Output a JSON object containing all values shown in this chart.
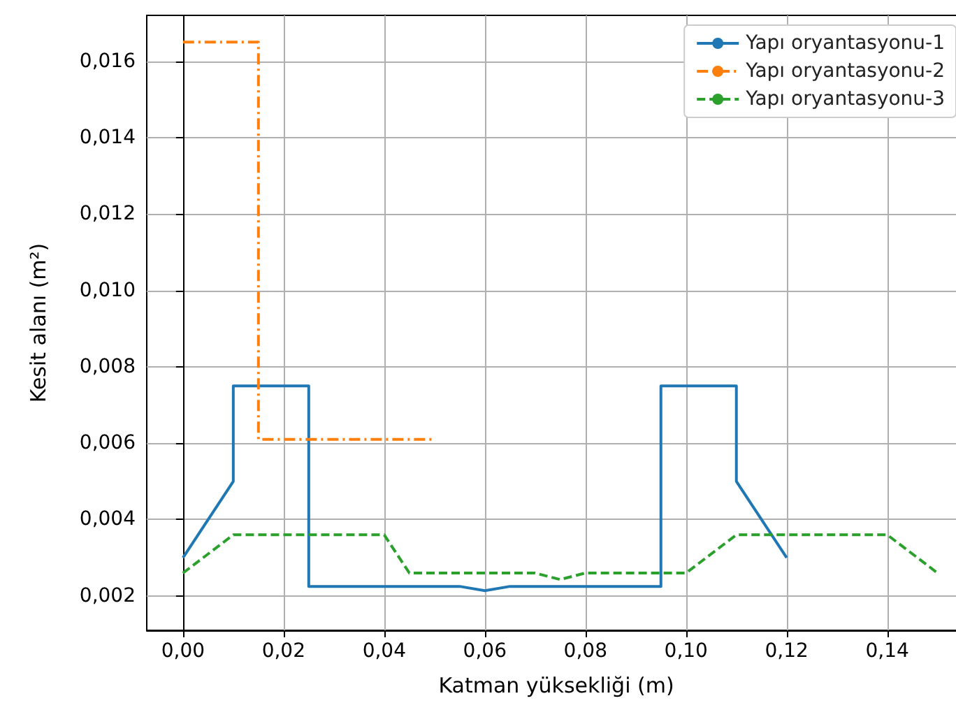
{
  "chart_data": {
    "type": "line",
    "xlabel": "Katman yüksekliği (m)",
    "ylabel": "Kesit alanı (m²)",
    "xlim": [
      -0.0072,
      0.1556
    ],
    "ylim": [
      0.0011,
      0.0172
    ],
    "xticks": [
      {
        "value": 0,
        "label": "0,00"
      },
      {
        "value": 0.02,
        "label": "0,02"
      },
      {
        "value": 0.04,
        "label": "0,04"
      },
      {
        "value": 0.06,
        "label": "0,06"
      },
      {
        "value": 0.08,
        "label": "0,08"
      },
      {
        "value": 0.1,
        "label": "0,10"
      },
      {
        "value": 0.12,
        "label": "0,12"
      },
      {
        "value": 0.14,
        "label": "0,14"
      }
    ],
    "yticks": [
      {
        "value": 0.002,
        "label": "0,002"
      },
      {
        "value": 0.004,
        "label": "0,004"
      },
      {
        "value": 0.006,
        "label": "0,006"
      },
      {
        "value": 0.008,
        "label": "0,008"
      },
      {
        "value": 0.01,
        "label": "0,010"
      },
      {
        "value": 0.012,
        "label": "0,012"
      },
      {
        "value": 0.014,
        "label": "0,014"
      },
      {
        "value": 0.016,
        "label": "0,016"
      }
    ],
    "grid": true,
    "legend": "top right",
    "marker": "none",
    "series": [
      {
        "name": "Yapı oryantasyonu-1",
        "color": "#1f77b4",
        "line_style": "solid",
        "x": [
          0,
          0.01,
          0.01,
          0.025,
          0.025,
          0.055,
          0.06,
          0.065,
          0.095,
          0.095,
          0.11,
          0.11,
          0.12
        ],
        "values": [
          0.003,
          0.005,
          0.0075,
          0.0075,
          0.00225,
          0.00225,
          0.00214,
          0.00225,
          0.00225,
          0.0075,
          0.0075,
          0.005,
          0.003
        ]
      },
      {
        "name": "Yapı oryantasyonu-2",
        "color": "#ff7f0e",
        "line_style": "dashdot",
        "x": [
          0,
          0.015,
          0.015,
          0.05
        ],
        "values": [
          0.0165,
          0.0165,
          0.0061,
          0.0061
        ]
      },
      {
        "name": "Yapı oryantasyonu-3",
        "color": "#2ca02c",
        "line_style": "dashed",
        "x": [
          0,
          0.01,
          0.04,
          0.045,
          0.07,
          0.075,
          0.08,
          0.1,
          0.11,
          0.14,
          0.15
        ],
        "values": [
          0.0026,
          0.0036,
          0.0036,
          0.0026,
          0.0026,
          0.00243,
          0.0026,
          0.0026,
          0.0036,
          0.0036,
          0.0026
        ]
      }
    ]
  }
}
